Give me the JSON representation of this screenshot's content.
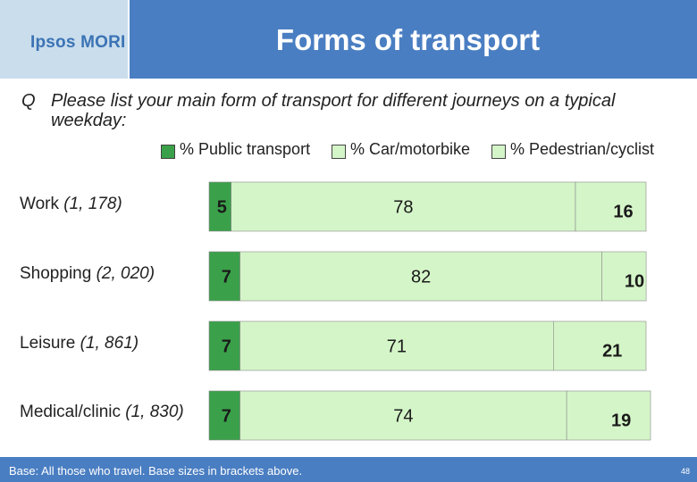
{
  "header": {
    "logo": "Ipsos MORI",
    "title": "Forms of transport"
  },
  "question": {
    "mark": "Q",
    "text": "Please list your main form of transport for different journeys on a typical weekday:"
  },
  "footer": {
    "note": "Base: All those who travel. Base sizes in brackets above.",
    "page": "48"
  },
  "colors": {
    "public": "#3aa14a",
    "car": "#d4f5c8",
    "pedestrian": "#d4f5c8",
    "header": "#4a7ec2",
    "logo_panel": "#c9ddec"
  },
  "chart_data": {
    "type": "bar",
    "orientation": "horizontal",
    "stacked": true,
    "categories": [
      {
        "name": "Work",
        "base": "(1, 178)"
      },
      {
        "name": "Shopping",
        "base": "(2, 020)"
      },
      {
        "name": "Leisure",
        "base": "(1, 861)"
      },
      {
        "name": "Medical/clinic",
        "base": "(1, 830)"
      }
    ],
    "series": [
      {
        "name": "% Public transport",
        "values": [
          5,
          7,
          7,
          7
        ],
        "color": "#3aa14a"
      },
      {
        "name": "% Car/motorbike",
        "values": [
          78,
          82,
          71,
          74
        ],
        "color": "#d4f5c8"
      },
      {
        "name": "% Pedestrian/cyclist",
        "values": [
          16,
          10,
          21,
          19
        ],
        "color": "#d4f5c8"
      }
    ],
    "xlim": [
      0,
      100
    ],
    "legend": "top"
  }
}
